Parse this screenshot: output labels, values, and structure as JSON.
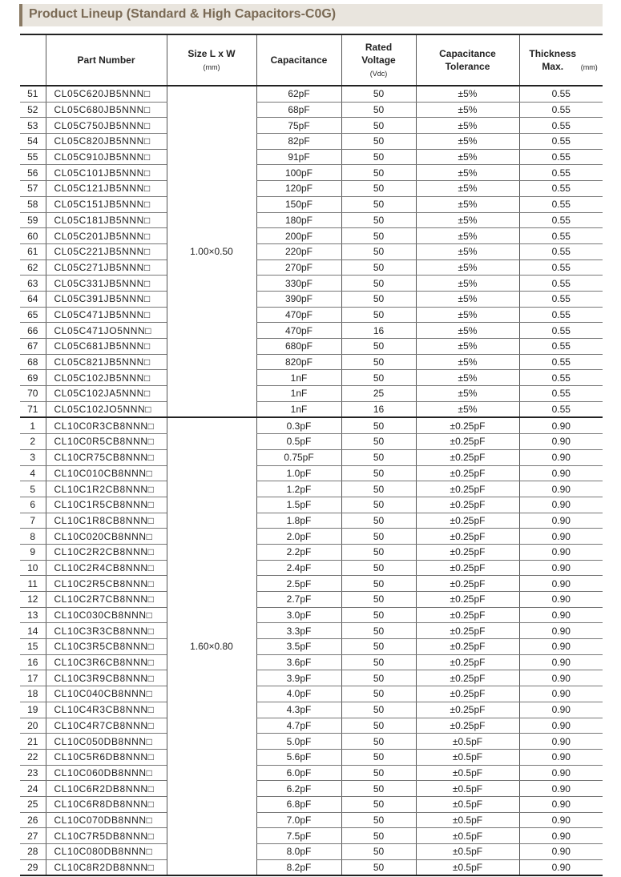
{
  "title": "Product Lineup (Standard & High Capacitors-C0G)",
  "headers": {
    "no": "",
    "part": "Part Number",
    "size": "Size L x W",
    "size_unit": "(mm)",
    "cap": "Capacitance",
    "volt": "Rated Voltage",
    "volt_unit": "(Vdc)",
    "tol": "Capacitance Tolerance",
    "thick": "Thickness Max.",
    "thick_unit": "(mm)"
  },
  "groups": [
    {
      "size": "1.00×0.50",
      "rows": [
        [
          "51",
          "CL05C620JB5NNN□",
          "62pF",
          "50",
          "±5%",
          "0.55"
        ],
        [
          "52",
          "CL05C680JB5NNN□",
          "68pF",
          "50",
          "±5%",
          "0.55"
        ],
        [
          "53",
          "CL05C750JB5NNN□",
          "75pF",
          "50",
          "±5%",
          "0.55"
        ],
        [
          "54",
          "CL05C820JB5NNN□",
          "82pF",
          "50",
          "±5%",
          "0.55"
        ],
        [
          "55",
          "CL05C910JB5NNN□",
          "91pF",
          "50",
          "±5%",
          "0.55"
        ],
        [
          "56",
          "CL05C101JB5NNN□",
          "100pF",
          "50",
          "±5%",
          "0.55"
        ],
        [
          "57",
          "CL05C121JB5NNN□",
          "120pF",
          "50",
          "±5%",
          "0.55"
        ],
        [
          "58",
          "CL05C151JB5NNN□",
          "150pF",
          "50",
          "±5%",
          "0.55"
        ],
        [
          "59",
          "CL05C181JB5NNN□",
          "180pF",
          "50",
          "±5%",
          "0.55"
        ],
        [
          "60",
          "CL05C201JB5NNN□",
          "200pF",
          "50",
          "±5%",
          "0.55"
        ],
        [
          "61",
          "CL05C221JB5NNN□",
          "220pF",
          "50",
          "±5%",
          "0.55"
        ],
        [
          "62",
          "CL05C271JB5NNN□",
          "270pF",
          "50",
          "±5%",
          "0.55"
        ],
        [
          "63",
          "CL05C331JB5NNN□",
          "330pF",
          "50",
          "±5%",
          "0.55"
        ],
        [
          "64",
          "CL05C391JB5NNN□",
          "390pF",
          "50",
          "±5%",
          "0.55"
        ],
        [
          "65",
          "CL05C471JB5NNN□",
          "470pF",
          "50",
          "±5%",
          "0.55"
        ],
        [
          "66",
          "CL05C471JO5NNN□",
          "470pF",
          "16",
          "±5%",
          "0.55"
        ],
        [
          "67",
          "CL05C681JB5NNN□",
          "680pF",
          "50",
          "±5%",
          "0.55"
        ],
        [
          "68",
          "CL05C821JB5NNN□",
          "820pF",
          "50",
          "±5%",
          "0.55"
        ],
        [
          "69",
          "CL05C102JB5NNN□",
          "1nF",
          "50",
          "±5%",
          "0.55"
        ],
        [
          "70",
          "CL05C102JA5NNN□",
          "1nF",
          "25",
          "±5%",
          "0.55"
        ],
        [
          "71",
          "CL05C102JO5NNN□",
          "1nF",
          "16",
          "±5%",
          "0.55"
        ]
      ]
    },
    {
      "size": "1.60×0.80",
      "rows": [
        [
          "1",
          "CL10C0R3CB8NNN□",
          "0.3pF",
          "50",
          "±0.25pF",
          "0.90"
        ],
        [
          "2",
          "CL10C0R5CB8NNN□",
          "0.5pF",
          "50",
          "±0.25pF",
          "0.90"
        ],
        [
          "3",
          "CL10CR75CB8NNN□",
          "0.75pF",
          "50",
          "±0.25pF",
          "0.90"
        ],
        [
          "4",
          "CL10C010CB8NNN□",
          "1.0pF",
          "50",
          "±0.25pF",
          "0.90"
        ],
        [
          "5",
          "CL10C1R2CB8NNN□",
          "1.2pF",
          "50",
          "±0.25pF",
          "0.90"
        ],
        [
          "6",
          "CL10C1R5CB8NNN□",
          "1.5pF",
          "50",
          "±0.25pF",
          "0.90"
        ],
        [
          "7",
          "CL10C1R8CB8NNN□",
          "1.8pF",
          "50",
          "±0.25pF",
          "0.90"
        ],
        [
          "8",
          "CL10C020CB8NNN□",
          "2.0pF",
          "50",
          "±0.25pF",
          "0.90"
        ],
        [
          "9",
          "CL10C2R2CB8NNN□",
          "2.2pF",
          "50",
          "±0.25pF",
          "0.90"
        ],
        [
          "10",
          "CL10C2R4CB8NNN□",
          "2.4pF",
          "50",
          "±0.25pF",
          "0.90"
        ],
        [
          "11",
          "CL10C2R5CB8NNN□",
          "2.5pF",
          "50",
          "±0.25pF",
          "0.90"
        ],
        [
          "12",
          "CL10C2R7CB8NNN□",
          "2.7pF",
          "50",
          "±0.25pF",
          "0.90"
        ],
        [
          "13",
          "CL10C030CB8NNN□",
          "3.0pF",
          "50",
          "±0.25pF",
          "0.90"
        ],
        [
          "14",
          "CL10C3R3CB8NNN□",
          "3.3pF",
          "50",
          "±0.25pF",
          "0.90"
        ],
        [
          "15",
          "CL10C3R5CB8NNN□",
          "3.5pF",
          "50",
          "±0.25pF",
          "0.90"
        ],
        [
          "16",
          "CL10C3R6CB8NNN□",
          "3.6pF",
          "50",
          "±0.25pF",
          "0.90"
        ],
        [
          "17",
          "CL10C3R9CB8NNN□",
          "3.9pF",
          "50",
          "±0.25pF",
          "0.90"
        ],
        [
          "18",
          "CL10C040CB8NNN□",
          "4.0pF",
          "50",
          "±0.25pF",
          "0.90"
        ],
        [
          "19",
          "CL10C4R3CB8NNN□",
          "4.3pF",
          "50",
          "±0.25pF",
          "0.90"
        ],
        [
          "20",
          "CL10C4R7CB8NNN□",
          "4.7pF",
          "50",
          "±0.25pF",
          "0.90"
        ],
        [
          "21",
          "CL10C050DB8NNN□",
          "5.0pF",
          "50",
          "±0.5pF",
          "0.90"
        ],
        [
          "22",
          "CL10C5R6DB8NNN□",
          "5.6pF",
          "50",
          "±0.5pF",
          "0.90"
        ],
        [
          "23",
          "CL10C060DB8NNN□",
          "6.0pF",
          "50",
          "±0.5pF",
          "0.90"
        ],
        [
          "24",
          "CL10C6R2DB8NNN□",
          "6.2pF",
          "50",
          "±0.5pF",
          "0.90"
        ],
        [
          "25",
          "CL10C6R8DB8NNN□",
          "6.8pF",
          "50",
          "±0.5pF",
          "0.90"
        ],
        [
          "26",
          "CL10C070DB8NNN□",
          "7.0pF",
          "50",
          "±0.5pF",
          "0.90"
        ],
        [
          "27",
          "CL10C7R5DB8NNN□",
          "7.5pF",
          "50",
          "±0.5pF",
          "0.90"
        ],
        [
          "28",
          "CL10C080DB8NNN□",
          "8.0pF",
          "50",
          "±0.5pF",
          "0.90"
        ],
        [
          "29",
          "CL10C8R2DB8NNN□",
          "8.2pF",
          "50",
          "±0.5pF",
          "0.90"
        ]
      ]
    }
  ]
}
